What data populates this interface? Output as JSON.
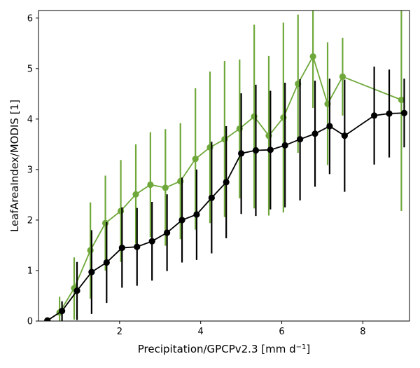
{
  "chart_data": {
    "type": "line",
    "xlabel": "Precipitation/GPCPv2.3 [mm d",
    "xlabel_sup": "−1",
    "xlabel_end": "]",
    "ylabel": "LeafAreaIndex/MODIS [1]",
    "xlim": [
      0.0,
      9.15
    ],
    "ylim": [
      0,
      6.15
    ],
    "xticks": [
      2,
      4,
      6,
      8
    ],
    "yticks": [
      0,
      1,
      2,
      3,
      4,
      5,
      6
    ],
    "grid": false,
    "series": [
      {
        "color": "#6fa83a",
        "points": [
          {
            "x": 0.22,
            "y": 0.01,
            "lo": 0.0,
            "hi": 0.05
          },
          {
            "x": 0.52,
            "y": 0.17,
            "lo": 0.0,
            "hi": 0.48
          },
          {
            "x": 0.88,
            "y": 0.65,
            "lo": 0.03,
            "hi": 1.26
          },
          {
            "x": 1.28,
            "y": 1.4,
            "lo": 0.44,
            "hi": 2.35
          },
          {
            "x": 1.65,
            "y": 1.94,
            "lo": 1.0,
            "hi": 2.88
          },
          {
            "x": 2.03,
            "y": 2.18,
            "lo": 1.17,
            "hi": 3.19
          },
          {
            "x": 2.4,
            "y": 2.51,
            "lo": 1.53,
            "hi": 3.5
          },
          {
            "x": 2.76,
            "y": 2.7,
            "lo": 1.66,
            "hi": 3.74
          },
          {
            "x": 3.13,
            "y": 2.64,
            "lo": 1.49,
            "hi": 3.8
          },
          {
            "x": 3.5,
            "y": 2.77,
            "lo": 1.62,
            "hi": 3.92
          },
          {
            "x": 3.87,
            "y": 3.21,
            "lo": 1.81,
            "hi": 4.61
          },
          {
            "x": 4.23,
            "y": 3.44,
            "lo": 1.94,
            "hi": 4.94
          },
          {
            "x": 4.59,
            "y": 3.6,
            "lo": 2.06,
            "hi": 5.15
          },
          {
            "x": 4.96,
            "y": 3.81,
            "lo": 2.43,
            "hi": 5.18
          },
          {
            "x": 5.32,
            "y": 4.05,
            "lo": 2.23,
            "hi": 5.87
          },
          {
            "x": 5.68,
            "y": 3.67,
            "lo": 2.09,
            "hi": 5.25
          },
          {
            "x": 6.04,
            "y": 4.03,
            "lo": 2.15,
            "hi": 5.91
          },
          {
            "x": 6.4,
            "y": 4.7,
            "lo": 3.33,
            "hi": 6.07
          },
          {
            "x": 6.77,
            "y": 5.24,
            "lo": 4.22,
            "hi": 6.15
          },
          {
            "x": 7.13,
            "y": 4.3,
            "lo": 3.09,
            "hi": 5.52
          },
          {
            "x": 7.5,
            "y": 4.84,
            "lo": 4.07,
            "hi": 5.61
          },
          {
            "x": 8.95,
            "y": 4.38,
            "lo": 2.18,
            "hi": 6.15
          }
        ]
      },
      {
        "color": "#000000",
        "points": [
          {
            "x": 0.22,
            "y": 0.01,
            "lo": 0.0,
            "hi": 0.04
          },
          {
            "x": 0.58,
            "y": 0.2,
            "lo": 0.0,
            "hi": 0.39
          },
          {
            "x": 0.95,
            "y": 0.6,
            "lo": 0.02,
            "hi": 1.17
          },
          {
            "x": 1.31,
            "y": 0.97,
            "lo": 0.14,
            "hi": 1.8
          },
          {
            "x": 1.68,
            "y": 1.16,
            "lo": 0.36,
            "hi": 1.96
          },
          {
            "x": 2.06,
            "y": 1.45,
            "lo": 0.66,
            "hi": 2.25
          },
          {
            "x": 2.43,
            "y": 1.47,
            "lo": 0.7,
            "hi": 2.24
          },
          {
            "x": 2.8,
            "y": 1.58,
            "lo": 0.8,
            "hi": 2.36
          },
          {
            "x": 3.17,
            "y": 1.75,
            "lo": 0.99,
            "hi": 2.51
          },
          {
            "x": 3.54,
            "y": 2.0,
            "lo": 1.16,
            "hi": 2.84
          },
          {
            "x": 3.9,
            "y": 2.11,
            "lo": 1.21,
            "hi": 3.0
          },
          {
            "x": 4.27,
            "y": 2.44,
            "lo": 1.34,
            "hi": 3.55
          },
          {
            "x": 4.63,
            "y": 2.75,
            "lo": 1.64,
            "hi": 3.86
          },
          {
            "x": 5.0,
            "y": 3.32,
            "lo": 2.12,
            "hi": 4.51
          },
          {
            "x": 5.36,
            "y": 3.38,
            "lo": 2.08,
            "hi": 4.68
          },
          {
            "x": 5.72,
            "y": 3.39,
            "lo": 2.21,
            "hi": 4.56
          },
          {
            "x": 6.08,
            "y": 3.48,
            "lo": 2.25,
            "hi": 4.72
          },
          {
            "x": 6.45,
            "y": 3.6,
            "lo": 2.39,
            "hi": 4.79
          },
          {
            "x": 6.82,
            "y": 3.71,
            "lo": 2.66,
            "hi": 4.76
          },
          {
            "x": 7.18,
            "y": 3.86,
            "lo": 2.91,
            "hi": 4.8
          },
          {
            "x": 7.55,
            "y": 3.67,
            "lo": 2.56,
            "hi": 4.78
          },
          {
            "x": 8.28,
            "y": 4.07,
            "lo": 3.1,
            "hi": 5.04
          },
          {
            "x": 8.65,
            "y": 4.11,
            "lo": 3.24,
            "hi": 4.98
          },
          {
            "x": 9.02,
            "y": 4.12,
            "lo": 3.44,
            "hi": 4.8
          }
        ]
      }
    ]
  }
}
